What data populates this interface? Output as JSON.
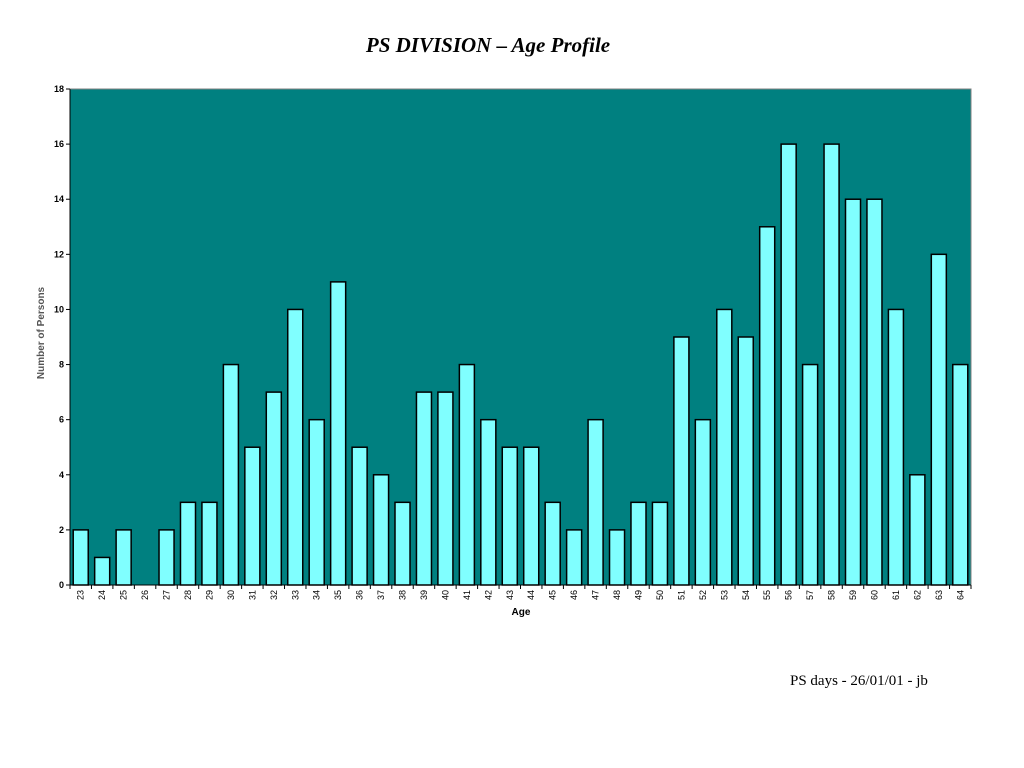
{
  "page": {
    "title": "PS DIVISION – Age Profile",
    "footer": "PS days - 26/01/01 - jb"
  },
  "chart_data": {
    "type": "bar",
    "title": "PS DIVISION – Age Profile",
    "xlabel": "Age",
    "ylabel": "Number of Persons",
    "categories": [
      "23",
      "24",
      "25",
      "26",
      "27",
      "28",
      "29",
      "30",
      "31",
      "32",
      "33",
      "34",
      "35",
      "36",
      "37",
      "38",
      "39",
      "40",
      "41",
      "42",
      "43",
      "44",
      "45",
      "46",
      "47",
      "48",
      "49",
      "50",
      "51",
      "52",
      "53",
      "54",
      "55",
      "56",
      "57",
      "58",
      "59",
      "60",
      "61",
      "62",
      "63",
      "64"
    ],
    "values": [
      2,
      1,
      2,
      0,
      2,
      3,
      3,
      8,
      5,
      7,
      10,
      6,
      11,
      5,
      4,
      3,
      7,
      7,
      8,
      6,
      5,
      5,
      3,
      2,
      6,
      2,
      3,
      3,
      9,
      6,
      10,
      9,
      13,
      16,
      8,
      16,
      14,
      14,
      10,
      4,
      12,
      8
    ],
    "y_ticks": [
      "0",
      "2",
      "4",
      "6",
      "8",
      "10",
      "12",
      "14",
      "16",
      "18"
    ],
    "ylim": [
      0,
      18
    ],
    "grid": false,
    "legend": "none",
    "colors": {
      "plot_background": "#008080",
      "bar_fill": "#80ffff",
      "bar_stroke": "#000000"
    }
  }
}
